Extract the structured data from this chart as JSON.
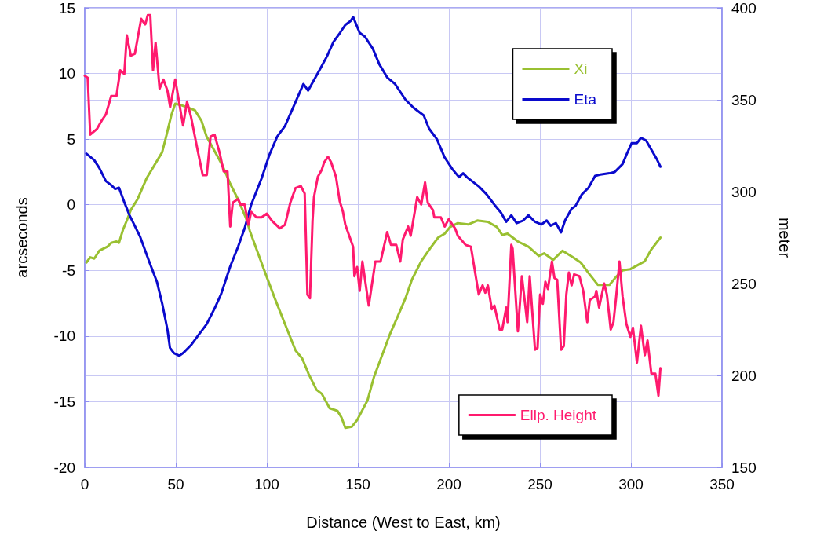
{
  "chart_data": {
    "type": "line",
    "xlabel": "Distance (West to East, km)",
    "ylabel": "arcseconds",
    "y2label": "meter",
    "xlim": [
      0,
      350
    ],
    "xticks": [
      0,
      50,
      100,
      150,
      200,
      250,
      300,
      350
    ],
    "ylim": [
      -20,
      15
    ],
    "yticks": [
      -20,
      -15,
      -10,
      -5,
      0,
      5,
      10,
      15
    ],
    "y2lim": [
      150,
      400
    ],
    "y2ticks": [
      150,
      200,
      250,
      300,
      350,
      400
    ],
    "grid": true,
    "legend": "right",
    "marker": "none",
    "line_style": "solid",
    "series": [
      {
        "name": "Xi",
        "color": "#99c031",
        "x": [
          0.9,
          3,
          5.2,
          8,
          12.4,
          14.5,
          17.4,
          18.8,
          21,
          23.1,
          25.3,
          28.9,
          33.9,
          38.2,
          42.5,
          44.7,
          47.5,
          49.7,
          52.6,
          56.9,
          60.5,
          64.1,
          66.9,
          71.3,
          75.6,
          79.9,
          84.2,
          88.5,
          90.7,
          98.6,
          104.3,
          110,
          115.8,
          119.4,
          123,
          127.3,
          130.2,
          134.5,
          138.8,
          141,
          143.1,
          146.7,
          149.6,
          155.3,
          158.9,
          163.2,
          167.5,
          171.9,
          176.2,
          179.7,
          184.8,
          189.8,
          194.1,
          197.7,
          200.6,
          204.9,
          210.6,
          215.6,
          221.4,
          226.4,
          229.3,
          232.2,
          237.9,
          243.7,
          249.4,
          252.3,
          257.3,
          262.4,
          268.1,
          272.4,
          276.7,
          281.8,
          288.2,
          291.8,
          295.4,
          299.7,
          307.6,
          311.2,
          316.2
        ],
        "values": [
          -4.4,
          -4.0,
          -4.1,
          -3.5,
          -3.2,
          -2.9,
          -2.8,
          -2.9,
          -1.9,
          -1.2,
          -0.4,
          0.4,
          2.0,
          3.0,
          4.0,
          5.2,
          6.8,
          7.7,
          7.6,
          7.4,
          7.2,
          6.4,
          5.2,
          4.1,
          3.0,
          1.6,
          0.4,
          -1.0,
          -2.0,
          -5.0,
          -7.1,
          -9.1,
          -11.1,
          -11.7,
          -12.9,
          -14.1,
          -14.4,
          -15.5,
          -15.7,
          -16.2,
          -17.0,
          -16.9,
          -16.4,
          -14.9,
          -13.1,
          -11.5,
          -9.9,
          -8.5,
          -7.1,
          -5.7,
          -4.3,
          -3.3,
          -2.5,
          -2.2,
          -1.7,
          -1.4,
          -1.5,
          -1.2,
          -1.3,
          -1.7,
          -2.3,
          -2.2,
          -2.8,
          -3.2,
          -3.9,
          -3.7,
          -4.2,
          -3.5,
          -4.0,
          -4.4,
          -5.2,
          -6.1,
          -6.1,
          -5.5,
          -5.0,
          -4.9,
          -4.3,
          -3.4,
          -2.5
        ]
      },
      {
        "name": "Eta",
        "color": "#0a0acc",
        "x": [
          0.9,
          5.2,
          8,
          11.6,
          14.5,
          16.7,
          18.8,
          21.7,
          24.6,
          30.3,
          35.3,
          39.7,
          42.5,
          45.4,
          46.8,
          49,
          51.9,
          54,
          58.3,
          62.6,
          66.9,
          71.3,
          74.9,
          79.9,
          84.2,
          87.8,
          91.4,
          97.1,
          101.4,
          105.7,
          110,
          114.4,
          120.1,
          122.7,
          128.7,
          133,
          136.6,
          140.2,
          143.1,
          146,
          147.4,
          151,
          153.9,
          158.2,
          161.8,
          166.1,
          170.4,
          176.2,
          180.5,
          186.2,
          189.1,
          193.4,
          197.7,
          202,
          205.6,
          207.8,
          209.9,
          216.4,
          220.7,
          225,
          228.6,
          231.5,
          234.3,
          237.2,
          240.8,
          243.7,
          247.3,
          250.9,
          253.7,
          255.9,
          258.8,
          261.6,
          263.8,
          267.4,
          269.5,
          273.1,
          276.7,
          280.3,
          283.2,
          288.2,
          291.1,
          295.4,
          297.5,
          300.4,
          303.3,
          305.5,
          308.3,
          311.2,
          314.1,
          316.2
        ],
        "values": [
          3.9,
          3.4,
          2.8,
          1.8,
          1.5,
          1.2,
          1.3,
          0.2,
          -0.8,
          -2.4,
          -4.3,
          -5.9,
          -7.5,
          -9.5,
          -10.9,
          -11.3,
          -11.5,
          -11.3,
          -10.7,
          -9.9,
          -9.1,
          -7.9,
          -6.8,
          -4.7,
          -3.2,
          -1.8,
          0.0,
          2.0,
          3.8,
          5.2,
          6.0,
          7.4,
          9.2,
          8.7,
          10.2,
          11.3,
          12.4,
          13.1,
          13.7,
          14.0,
          14.3,
          13.1,
          12.8,
          11.9,
          10.7,
          9.7,
          9.2,
          8.0,
          7.4,
          6.8,
          5.8,
          5.0,
          3.6,
          2.7,
          2.1,
          2.4,
          2.1,
          1.4,
          0.8,
          0.0,
          -0.6,
          -1.3,
          -0.8,
          -1.4,
          -1.2,
          -0.8,
          -1.3,
          -1.5,
          -1.2,
          -1.6,
          -1.4,
          -2.1,
          -1.2,
          -0.3,
          -0.1,
          0.8,
          1.3,
          2.2,
          2.3,
          2.4,
          2.5,
          3.1,
          3.8,
          4.7,
          4.7,
          5.1,
          4.9,
          4.2,
          3.5,
          2.9
        ]
      },
      {
        "name": "Ellp. Height",
        "color": "#ff1a6e",
        "axis": "y2",
        "x": [
          0,
          1.6,
          3,
          6.6,
          9.5,
          11.6,
          14.5,
          17.4,
          19.5,
          21.7,
          23.1,
          25.3,
          27.5,
          31,
          33.2,
          34.6,
          36,
          37.5,
          38.9,
          41.1,
          43.2,
          45.4,
          46.9,
          49.7,
          54,
          56.2,
          58.3,
          61.9,
          64.8,
          67,
          69.1,
          71.3,
          74.1,
          76.3,
          78.4,
          79.9,
          81.3,
          84.2,
          85.6,
          87.8,
          89.9,
          91.4,
          94.3,
          97.1,
          100,
          102.9,
          107.2,
          110,
          112.9,
          115.8,
          118.7,
          120.8,
          122.3,
          123.7,
          125.1,
          125.9,
          128,
          130.2,
          131.5,
          133.6,
          135.3,
          138,
          140,
          141.8,
          143.1,
          147.4,
          148.1,
          149.6,
          151,
          152.5,
          156,
          159.6,
          162.5,
          166.1,
          168.2,
          171.1,
          173.3,
          174.7,
          177.6,
          179,
          182.6,
          184.8,
          186.9,
          188.4,
          191.2,
          192,
          195.6,
          197.7,
          199.9,
          203.4,
          204.9,
          209.2,
          212.1,
          216.4,
          218.5,
          220,
          221.4,
          223.6,
          225,
          227.9,
          229.3,
          231.5,
          232.2,
          234.3,
          235,
          237.9,
          240.1,
          243,
          244.4,
          247.3,
          248.7,
          250.1,
          251.6,
          253,
          254.4,
          256.6,
          258,
          259.5,
          261.6,
          263.1,
          264.5,
          265.9,
          267.4,
          268.8,
          271.7,
          273.8,
          276,
          277.4,
          280.3,
          281,
          282.5,
          285.3,
          286.8,
          288.9,
          290.4,
          291.8,
          293.7,
          295.4,
          297.5,
          299.7,
          301.1,
          303.3,
          305.5,
          307.6,
          309.1,
          311.2,
          313.4,
          315.1,
          316.2
        ],
        "values": [
          363,
          362,
          331,
          334,
          339,
          342,
          352,
          352,
          366,
          364,
          385,
          374,
          375,
          394,
          391,
          396,
          396,
          366,
          381,
          356,
          361,
          355,
          346,
          361,
          336,
          349,
          341,
          323,
          309,
          309,
          330,
          331,
          321,
          311,
          311,
          281,
          294,
          296,
          293,
          293,
          282,
          289,
          286,
          286,
          288,
          284,
          280,
          282,
          294,
          302,
          303,
          299,
          244,
          242,
          284,
          297,
          308,
          312,
          316,
          319,
          316,
          308,
          295,
          289,
          282,
          270,
          254,
          259,
          246,
          262,
          238,
          262,
          262,
          278,
          271,
          271,
          262,
          274,
          281,
          276,
          297,
          293,
          305,
          294,
          290,
          286,
          286,
          281,
          285,
          280,
          276,
          271,
          270,
          244,
          249,
          245,
          249,
          236,
          238,
          225,
          225,
          237,
          229,
          271,
          269,
          224,
          254,
          229,
          254,
          214,
          215,
          244,
          239,
          251,
          247,
          262,
          253,
          252,
          214,
          216,
          244,
          256,
          249,
          255,
          254,
          246,
          229,
          241,
          243,
          246,
          237,
          250,
          244,
          225,
          229,
          242,
          262,
          243,
          228,
          221,
          226,
          207,
          227,
          211,
          219,
          201,
          201,
          189,
          204
        ]
      }
    ]
  }
}
